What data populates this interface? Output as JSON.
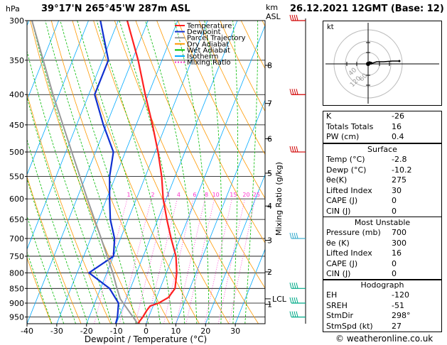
{
  "header": {
    "hpa_label": "hPa",
    "location": "39°17'N  265°45'W  287m  ASL",
    "km_label": "km",
    "asl_label": "ASL",
    "datetime": "26.12.2021  12GMT  (Base: 12)"
  },
  "legend": [
    {
      "label": "Temperature",
      "color": "#ff2020",
      "style": "solid"
    },
    {
      "label": "Dewpoint",
      "color": "#1030d0",
      "style": "solid"
    },
    {
      "label": "Parcel Trajectory",
      "color": "#999999",
      "style": "solid"
    },
    {
      "label": "Dry Adiabat",
      "color": "#ff9900",
      "style": "solid"
    },
    {
      "label": "Wet Adiabat",
      "color": "#00bb00",
      "style": "solid"
    },
    {
      "label": "Isotherm",
      "color": "#00aaff",
      "style": "solid"
    },
    {
      "label": "Mixing Ratio",
      "color": "#ff33cc",
      "style": "dotted"
    }
  ],
  "chart_data": {
    "type": "line",
    "xlabel": "Dewpoint / Temperature (°C)",
    "right_axis_label": "Mixing Ratio (g/kg)",
    "x_ticks": [
      -40,
      -30,
      -20,
      -10,
      0,
      10,
      20,
      30
    ],
    "xlim": [
      -40,
      40
    ],
    "pressure_levels": [
      300,
      350,
      400,
      450,
      500,
      550,
      600,
      650,
      700,
      750,
      800,
      850,
      900,
      950
    ],
    "ylim_hpa": [
      975,
      300
    ],
    "y_scale": "log",
    "km_ticks": [
      {
        "km": "8",
        "p": 357
      },
      {
        "km": "7",
        "p": 414
      },
      {
        "km": "6",
        "p": 475
      },
      {
        "km": "5",
        "p": 543
      },
      {
        "km": "4",
        "p": 617
      },
      {
        "km": "3",
        "p": 705
      },
      {
        "km": "2",
        "p": 797
      },
      {
        "km": "1",
        "p": 904
      }
    ],
    "lcl": {
      "label": "LCL",
      "p": 885
    },
    "mixing_ratio_labels": [
      "1",
      "2",
      "3",
      "4",
      "6",
      "8",
      "10",
      "15",
      "20",
      "25"
    ],
    "skew_per_log_unit": 34.5,
    "series": [
      {
        "name": "Temperature",
        "color": "#ff2020",
        "points": [
          {
            "p": 975,
            "t": -2.8
          },
          {
            "p": 950,
            "t": -2.0
          },
          {
            "p": 925,
            "t": -1.5
          },
          {
            "p": 910,
            "t": -1.0
          },
          {
            "p": 900,
            "t": 1.5
          },
          {
            "p": 880,
            "t": 4.0
          },
          {
            "p": 850,
            "t": 5.0
          },
          {
            "p": 800,
            "t": 3.5
          },
          {
            "p": 750,
            "t": 1.0
          },
          {
            "p": 700,
            "t": -3.0
          },
          {
            "p": 650,
            "t": -7.0
          },
          {
            "p": 600,
            "t": -11.0
          },
          {
            "p": 550,
            "t": -14.5
          },
          {
            "p": 500,
            "t": -19.0
          },
          {
            "p": 450,
            "t": -24.5
          },
          {
            "p": 400,
            "t": -31.0
          },
          {
            "p": 350,
            "t": -38.0
          },
          {
            "p": 300,
            "t": -47.0
          }
        ]
      },
      {
        "name": "Dewpoint",
        "color": "#1030d0",
        "points": [
          {
            "p": 975,
            "t": -10.2
          },
          {
            "p": 950,
            "t": -10.5
          },
          {
            "p": 900,
            "t": -12.0
          },
          {
            "p": 850,
            "t": -17.0
          },
          {
            "p": 800,
            "t": -26.0
          },
          {
            "p": 750,
            "t": -20.0
          },
          {
            "p": 700,
            "t": -22.0
          },
          {
            "p": 650,
            "t": -26.0
          },
          {
            "p": 600,
            "t": -29.0
          },
          {
            "p": 550,
            "t": -32.0
          },
          {
            "p": 500,
            "t": -34.0
          },
          {
            "p": 450,
            "t": -41.0
          },
          {
            "p": 400,
            "t": -48.0
          },
          {
            "p": 350,
            "t": -48.0
          },
          {
            "p": 300,
            "t": -56.0
          }
        ]
      },
      {
        "name": "Parcel Trajectory",
        "color": "#999999",
        "points": [
          {
            "p": 975,
            "t": -2.8
          },
          {
            "p": 885,
            "t": -12.0
          },
          {
            "p": 850,
            "t": -14.5
          },
          {
            "p": 800,
            "t": -18.0
          },
          {
            "p": 700,
            "t": -26.5
          },
          {
            "p": 600,
            "t": -36.5
          },
          {
            "p": 500,
            "t": -48.0
          },
          {
            "p": 400,
            "t": -62.0
          },
          {
            "p": 300,
            "t": -79.0
          }
        ]
      }
    ],
    "wind_barbs_hpa": [
      300,
      400,
      500,
      700,
      850,
      900,
      950
    ]
  },
  "hodograph": {
    "unit_label": "kt",
    "ring_labels": [
      "40",
      "60",
      "120"
    ]
  },
  "indices": {
    "rows": [
      {
        "label": "K",
        "value": "-26"
      },
      {
        "label": "Totals Totals",
        "value": "16"
      },
      {
        "label": "PW (cm)",
        "value": "0.4"
      }
    ]
  },
  "surface": {
    "title": "Surface",
    "rows": [
      {
        "label": "Temp (°C)",
        "value": "-2.8"
      },
      {
        "label": "Dewp (°C)",
        "value": "-10.2"
      },
      {
        "label": "θe(K)",
        "value": "275"
      },
      {
        "label": "Lifted Index",
        "value": "30"
      },
      {
        "label": "CAPE (J)",
        "value": "0"
      },
      {
        "label": "CIN (J)",
        "value": "0"
      }
    ]
  },
  "most_unstable": {
    "title": "Most Unstable",
    "rows": [
      {
        "label": "Pressure (mb)",
        "value": "700"
      },
      {
        "label": "θe (K)",
        "value": "300"
      },
      {
        "label": "Lifted Index",
        "value": "16"
      },
      {
        "label": "CAPE (J)",
        "value": "0"
      },
      {
        "label": "CIN (J)",
        "value": "0"
      }
    ]
  },
  "hodograph_table": {
    "title": "Hodograph",
    "rows": [
      {
        "label": "EH",
        "value": "-120"
      },
      {
        "label": "SREH",
        "value": "-51"
      },
      {
        "label": "StmDir",
        "value": "298°"
      },
      {
        "label": "StmSpd (kt)",
        "value": "27"
      }
    ]
  },
  "footer": {
    "copyright": "© weatheronline.co.uk"
  }
}
